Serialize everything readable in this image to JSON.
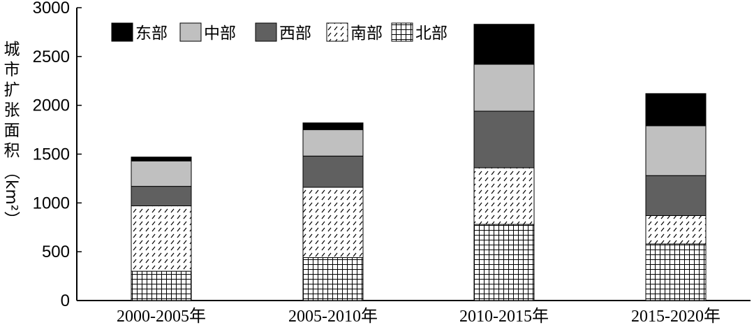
{
  "chart_data": {
    "type": "bar",
    "stacked": true,
    "title": "",
    "xlabel": "",
    "ylabel": "城市扩张面积（km²）",
    "ylim": [
      0,
      3000
    ],
    "yticks": [
      0,
      500,
      1000,
      1500,
      2000,
      2500,
      3000
    ],
    "grid": false,
    "legend_position": "top-left",
    "categories": [
      "2000-2005年",
      "2005-2010年",
      "2010-2015年",
      "2015-2020年"
    ],
    "series": [
      {
        "name": "北部",
        "pattern": "grid",
        "color": "#000000",
        "values": [
          300,
          440,
          780,
          580
        ]
      },
      {
        "name": "南部",
        "pattern": "diagonal-dash",
        "color": "#000000",
        "values": [
          670,
          720,
          580,
          290
        ]
      },
      {
        "name": "西部",
        "pattern": "solid",
        "color": "#606060",
        "values": [
          200,
          320,
          580,
          410
        ]
      },
      {
        "name": "中部",
        "pattern": "solid",
        "color": "#c0c0c0",
        "values": [
          260,
          270,
          480,
          510
        ]
      },
      {
        "name": "东部",
        "pattern": "solid",
        "color": "#000000",
        "values": [
          40,
          70,
          410,
          330
        ]
      }
    ],
    "legend_order": [
      "东部",
      "中部",
      "西部",
      "南部",
      "北部"
    ]
  }
}
